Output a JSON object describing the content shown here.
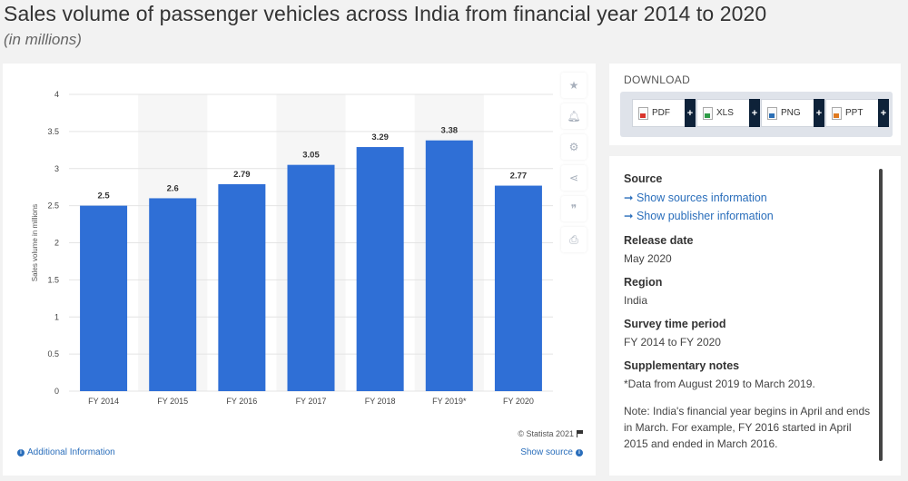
{
  "page": {
    "title": "Sales volume of passenger vehicles across India from financial year 2014 to 2020",
    "subtitle": "(in millions)"
  },
  "chart_data": {
    "type": "bar",
    "categories": [
      "FY 2014",
      "FY 2015",
      "FY 2016",
      "FY 2017",
      "FY 2018",
      "FY 2019*",
      "FY 2020"
    ],
    "values": [
      2.5,
      2.6,
      2.79,
      3.05,
      3.29,
      3.38,
      2.77
    ],
    "value_labels": [
      "2.5",
      "2.6",
      "2.79",
      "3.05",
      "3.29",
      "3.38",
      "2.77"
    ],
    "xlabel": "",
    "ylabel": "Sales volume in millions",
    "ylim": [
      0,
      4
    ],
    "yticks": [
      "0",
      "0.5",
      "1",
      "1.5",
      "2",
      "2.5",
      "3",
      "3.5",
      "4"
    ],
    "bar_color": "#2f6fd6",
    "grid": true
  },
  "chart_footer": {
    "copyright": "© Statista 2021",
    "additional_info": "Additional Information",
    "show_source": "Show source"
  },
  "tools": [
    "star-icon",
    "bell-icon",
    "gear-icon",
    "share-icon",
    "quote-icon",
    "print-icon"
  ],
  "download": {
    "title": "DOWNLOAD",
    "buttons": [
      {
        "label": "PDF",
        "plus": "+"
      },
      {
        "label": "XLS",
        "plus": "+"
      },
      {
        "label": "PNG",
        "plus": "+"
      },
      {
        "label": "PPT",
        "plus": "+"
      }
    ]
  },
  "details": {
    "source_head": "Source",
    "show_sources": "➞ Show sources information",
    "show_publisher": "➞ Show publisher information",
    "release_head": "Release date",
    "release_value": "May 2020",
    "region_head": "Region",
    "region_value": "India",
    "survey_head": "Survey time period",
    "survey_value": "FY 2014 to FY 2020",
    "supp_head": "Supplementary notes",
    "supp_note1": "*Data from August 2019 to March 2019.",
    "supp_note2": "Note: India's financial year begins in April and ends in March. For example, FY 2016 started in April 2015 and ended in March 2016."
  }
}
